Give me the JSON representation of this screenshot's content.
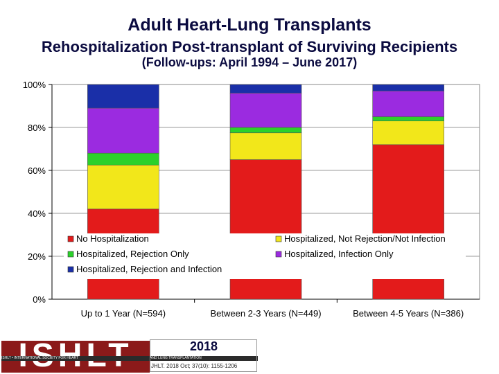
{
  "header": {
    "title": "Adult Heart-Lung Transplants",
    "subtitle": "Rehospitalization Post-transplant of Surviving Recipients",
    "followup": "(Follow-ups: April 1994 – June 2017)"
  },
  "footer": {
    "logo_text": "ISHLT",
    "tagline_left": "ISHLT • INTERNATIONAL SOCIETY FOR HEART",
    "tagline_right": "AND LUNG TRANSPLANTATION",
    "year": "2018",
    "citation": "JHLT. 2018 Oct; 37(10): 1155-1206"
  },
  "chart_data": {
    "type": "bar",
    "stacked": true,
    "categories": [
      "Up to 1 Year (N=594)",
      "Between 2-3 Years (N=449)",
      "Between 4-5 Years (N=386)"
    ],
    "series": [
      {
        "name": "No Hospitalization",
        "color": "#e31b1b",
        "values": [
          42,
          65,
          72
        ]
      },
      {
        "name": "Hospitalized, Not Rejection/Not Infection",
        "color": "#f2e71a",
        "values": [
          20.5,
          12.5,
          11
        ]
      },
      {
        "name": "Hospitalized, Rejection Only",
        "color": "#2bd12b",
        "values": [
          5.5,
          2.5,
          2
        ]
      },
      {
        "name": "Hospitalized, Infection Only",
        "color": "#9b2be0",
        "values": [
          21,
          16,
          12
        ]
      },
      {
        "name": "Hospitalized, Rejection and Infection",
        "color": "#1a2fa8",
        "values": [
          11,
          4,
          3
        ]
      }
    ],
    "yticks": [
      "0%",
      "20%",
      "40%",
      "60%",
      "80%",
      "100%"
    ],
    "ylim": [
      0,
      100
    ],
    "grid": true,
    "legend_position": "inside-bottom"
  }
}
